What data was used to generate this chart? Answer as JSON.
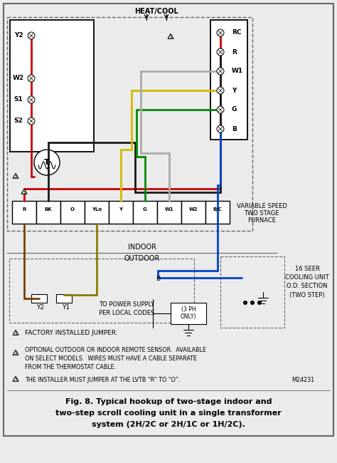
{
  "bg_color": "#ebebeb",
  "border_color": "#666666",
  "title_line1": "Fig. 8. Typical hookup of two-stage indoor and",
  "title_line2": "two-step scroll cooling unit in a single transformer",
  "title_line3": "system (2H/2C or 2H/1C or 1H/2C).",
  "note1": "FACTORY INSTALLED JUMPER.",
  "note2_line1": "OPTIONAL OUTDOOR OR INDOOR REMOTE SENSOR.  AVAILABLE",
  "note2_line2": "ON SELECT MODELS.  WIRES MUST HAVE A CABLE SEPARATE",
  "note2_line3": "FROM THE THERMOSTAT CABLE.",
  "note3": "THE INSTALLER MUST JUMPER AT THE LVTB “R” TO “O”.",
  "note3_code": "M24231",
  "heat_cool_label": "HEAT/COOL",
  "furnace_terminals": [
    "R",
    "BK",
    "O",
    "YLo",
    "Y",
    "G",
    "W1",
    "W2",
    "B/C"
  ],
  "furnace_label_line1": "VARIABLE SPEED",
  "furnace_label_line2": "TWO STAGE",
  "furnace_label_line3": "FURNACE",
  "indoor_label": "INDOOR",
  "outdoor_label": "OUTDOOR",
  "cooling_label_line1": "16 SEER",
  "cooling_label_line2": "COOLING UNIT",
  "cooling_label_line3": "O.D. SECTION",
  "cooling_label_line4": "(TWO STEP)",
  "power_label_line1": "TO POWER SUPPLY",
  "power_label_line2": "PER LOCAL CODES",
  "ph_label_line1": "(3 PH",
  "ph_label_line2": "ONLY)",
  "left_terms": [
    "Y2",
    "W2",
    "S1",
    "S2"
  ],
  "right_terms": [
    "RC",
    "R",
    "W1",
    "Y",
    "G",
    "B"
  ],
  "wire_red": "#cc0000",
  "wire_black": "#1a1a1a",
  "wire_yellow": "#d4b800",
  "wire_green": "#008800",
  "wire_blue": "#0044cc",
  "wire_gray": "#aaaaaa",
  "wire_brown": "#7b3f00",
  "wire_olive": "#8c7a00"
}
